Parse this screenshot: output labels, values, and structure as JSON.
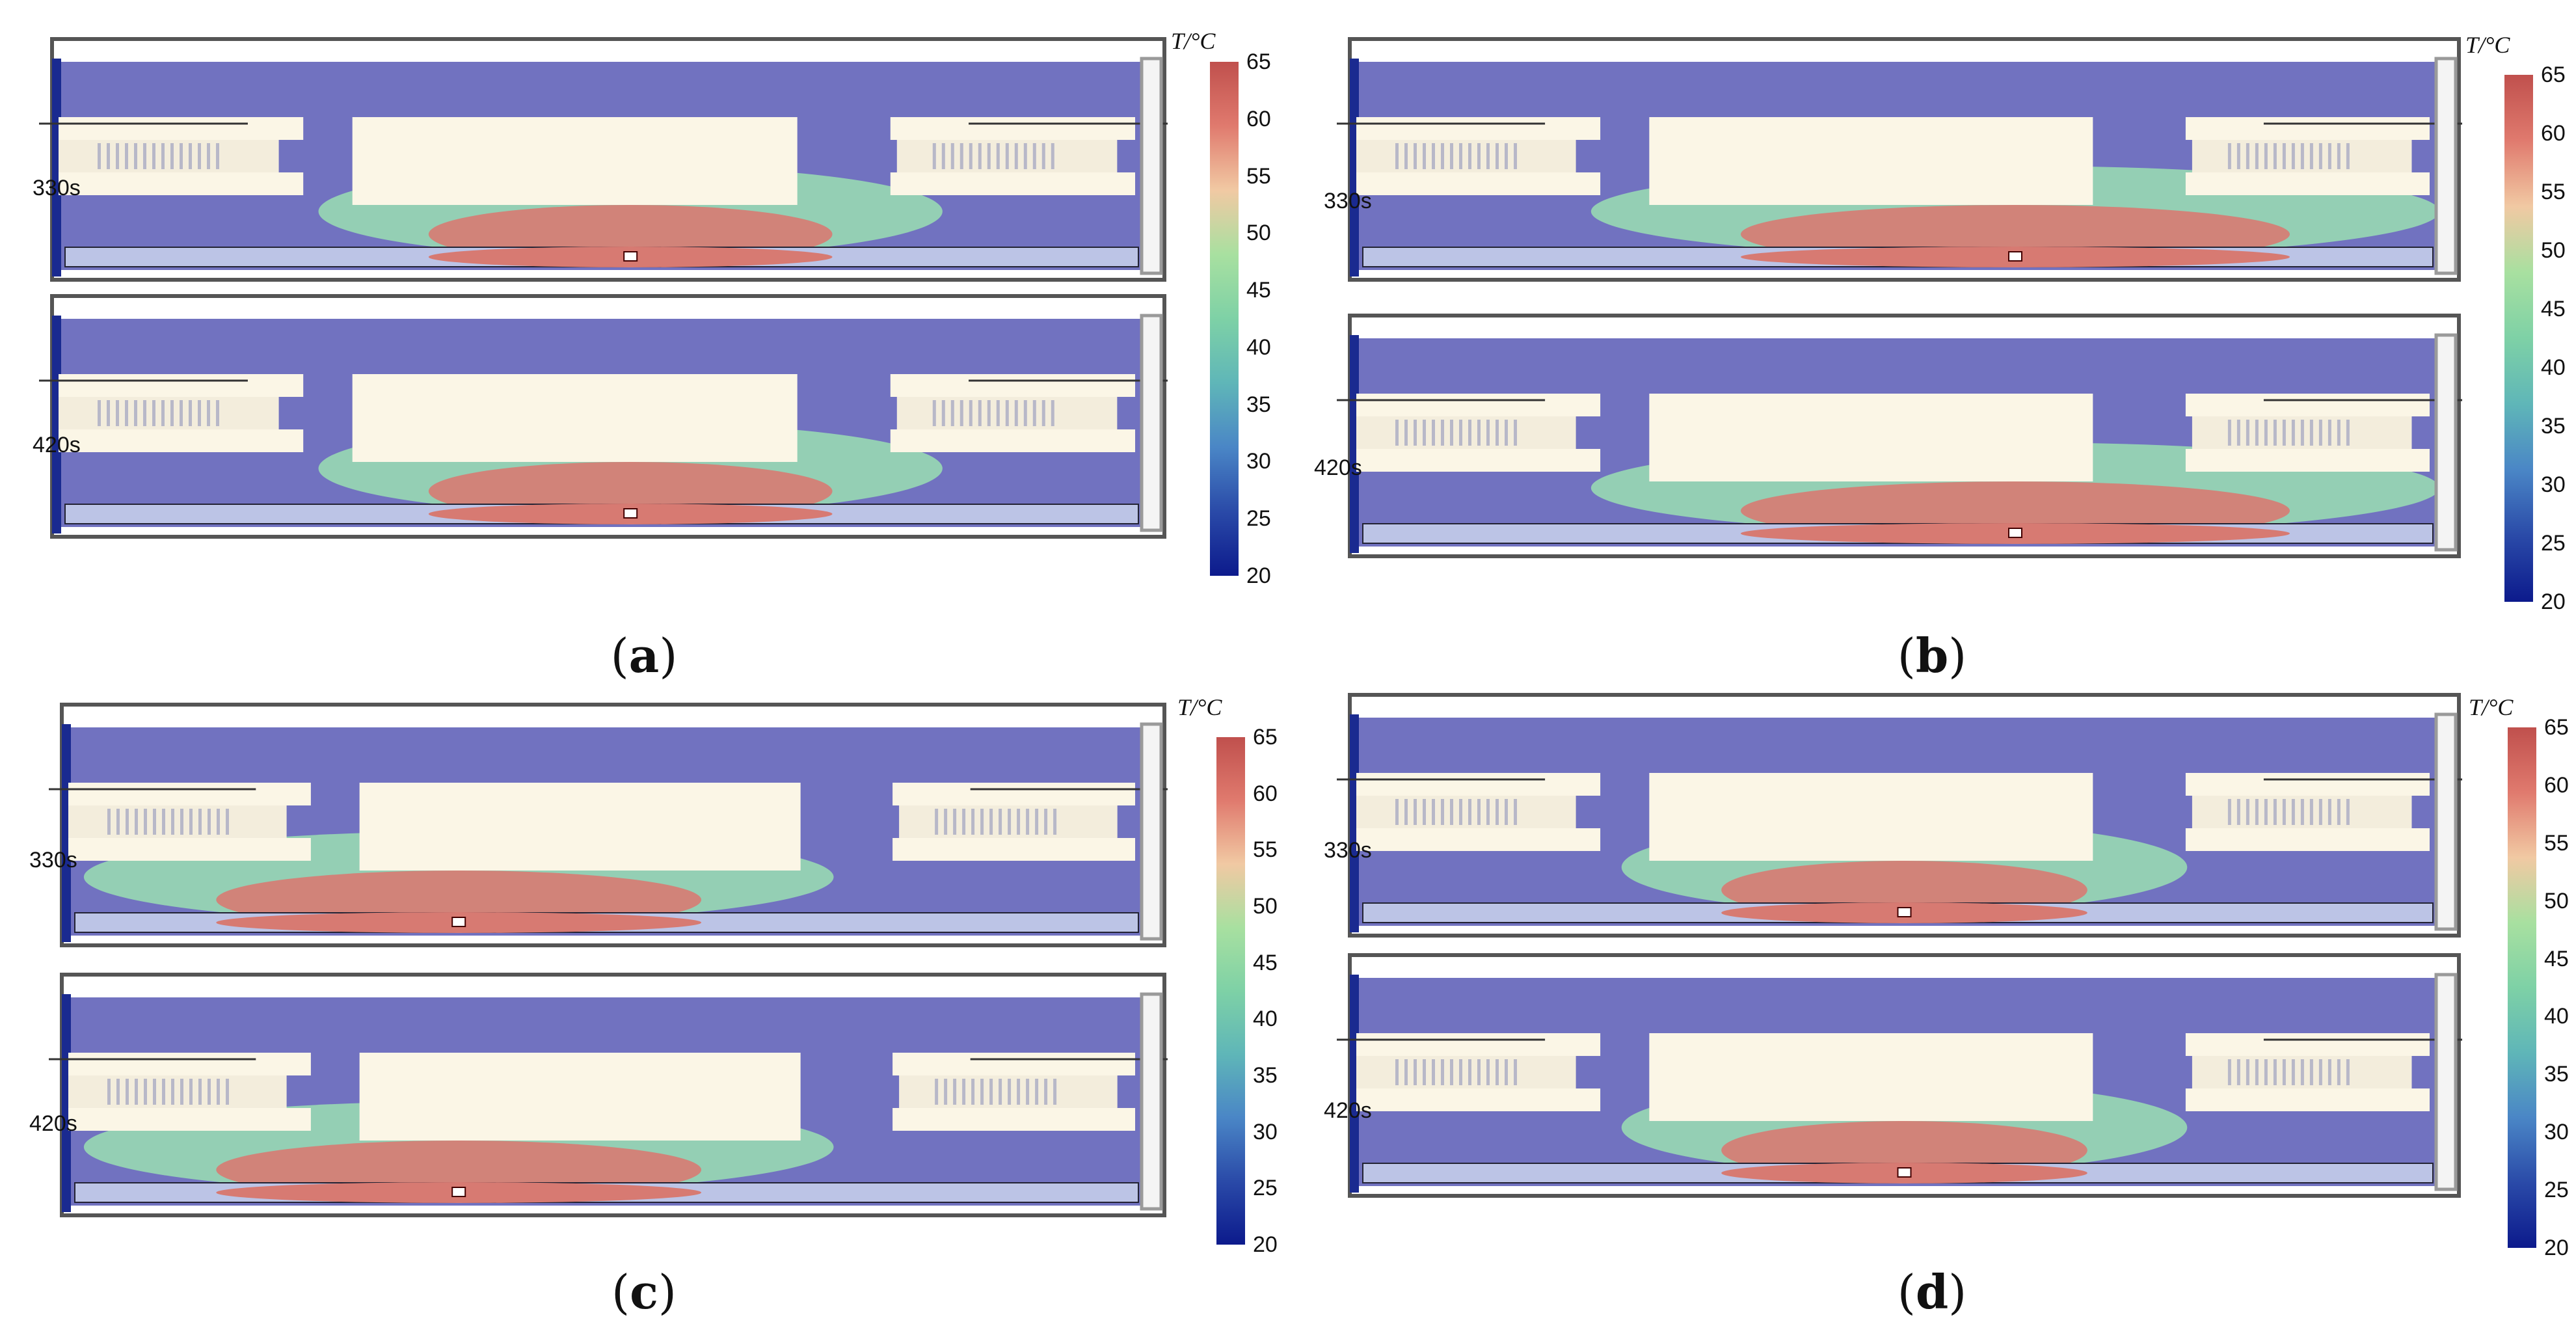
{
  "figure": {
    "colorbar": {
      "title": "T/°C",
      "ticks": [
        "65",
        "60",
        "55",
        "50",
        "45",
        "40",
        "35",
        "30",
        "25",
        "20"
      ],
      "colors": [
        "#c0504d",
        "#e07a6e",
        "#f1c9a3",
        "#a8e0a0",
        "#7ed1a6",
        "#5fb6b8",
        "#4a86c6",
        "#2a4aa8",
        "#0c1a8c"
      ]
    },
    "palette": {
      "cold_fluid": "#7172c0",
      "structure": "#fbf6e6",
      "hot": "#d77a72",
      "warm": "#9adfb2",
      "frame": "#555555"
    },
    "panels": [
      {
        "caption_letter": "a",
        "time_top": "330s",
        "time_bottom": "420s"
      },
      {
        "caption_letter": "b",
        "time_top": "330s",
        "time_bottom": "420s"
      },
      {
        "caption_letter": "c",
        "time_top": "330s",
        "time_bottom": "420s"
      },
      {
        "caption_letter": "d",
        "time_top": "330s",
        "time_bottom": "420s"
      }
    ]
  }
}
